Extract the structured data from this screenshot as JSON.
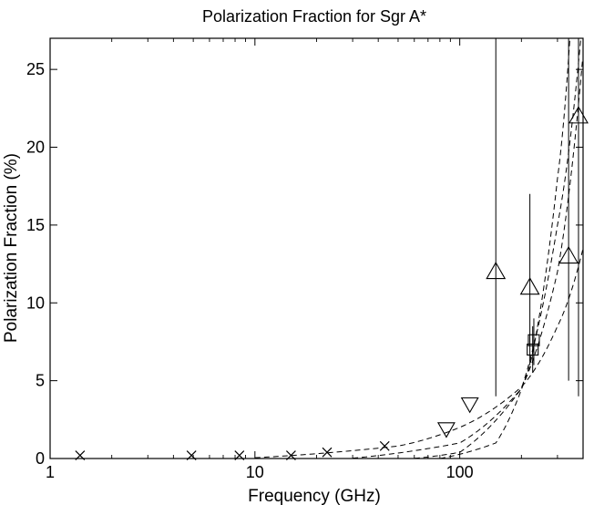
{
  "chart_data": {
    "type": "scatter",
    "title": "Polarization Fraction for Sgr A*",
    "xlabel": "Frequency (GHz)",
    "ylabel": "Polarization Fraction (%)",
    "xscale": "log",
    "xlim": [
      1,
      400
    ],
    "ylim": [
      0,
      27
    ],
    "xticks": [
      1,
      10,
      100
    ],
    "xtick_labels": [
      "1",
      "10",
      "100"
    ],
    "yticks": [
      0,
      5,
      10,
      15,
      20,
      25
    ],
    "ytick_labels": [
      "0",
      "5",
      "10",
      "15",
      "20",
      "25"
    ],
    "grid": false,
    "legend": false,
    "colors": {
      "ink": "#000000",
      "background": "#ffffff"
    },
    "series": [
      {
        "marker": "x",
        "points": [
          {
            "x": 1.4,
            "y": 0.2
          },
          {
            "x": 4.9,
            "y": 0.2
          },
          {
            "x": 8.4,
            "y": 0.2
          },
          {
            "x": 15,
            "y": 0.2
          },
          {
            "x": 22.5,
            "y": 0.4
          },
          {
            "x": 43,
            "y": 0.8
          }
        ]
      },
      {
        "marker": "triangle-down",
        "points": [
          {
            "x": 86,
            "y": 1.9
          },
          {
            "x": 112,
            "y": 3.5
          }
        ]
      },
      {
        "marker": "triangle-up",
        "points": [
          {
            "x": 150,
            "y": 12,
            "ylow": 4,
            "yhigh": 27
          },
          {
            "x": 220,
            "y": 11,
            "ylow": 6,
            "yhigh": 17
          },
          {
            "x": 340,
            "y": 13,
            "ylow": 5,
            "yhigh": 27
          },
          {
            "x": 380,
            "y": 22,
            "ylow": 4,
            "yhigh": 27
          }
        ]
      },
      {
        "marker": "square",
        "points": [
          {
            "x": 227,
            "y": 7.0,
            "ylow": 5.5,
            "yhigh": 8.5
          },
          {
            "x": 230,
            "y": 7.6,
            "ylow": 6.0,
            "yhigh": 9.0
          }
        ]
      }
    ],
    "model_curves": [
      {
        "style": "dashed",
        "points": [
          [
            10,
            0.05
          ],
          [
            50,
            0.8
          ],
          [
            100,
            2.0
          ],
          [
            200,
            4.6
          ],
          [
            300,
            8.5
          ],
          [
            400,
            13.5
          ]
        ]
      },
      {
        "style": "dashed",
        "points": [
          [
            30,
            0.02
          ],
          [
            100,
            1.0
          ],
          [
            200,
            4.5
          ],
          [
            300,
            12.0
          ],
          [
            400,
            26.0
          ]
        ]
      },
      {
        "style": "dashed",
        "points": [
          [
            60,
            0.01
          ],
          [
            100,
            0.4
          ],
          [
            200,
            4.5
          ],
          [
            300,
            15.0
          ],
          [
            390,
            27.0
          ]
        ]
      },
      {
        "style": "dashed",
        "points": [
          [
            80,
            0.0
          ],
          [
            150,
            1.0
          ],
          [
            220,
            6.0
          ],
          [
            300,
            18.0
          ],
          [
            345,
            27.0
          ]
        ]
      }
    ]
  }
}
